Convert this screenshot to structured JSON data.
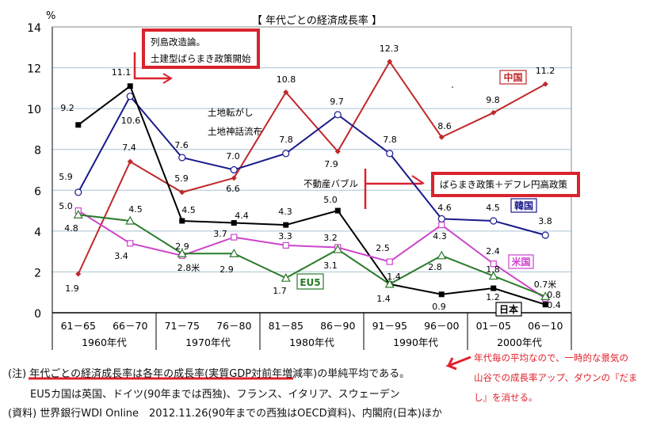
{
  "chart_data": {
    "type": "line",
    "title": "【 年代ごとの経済成長率 】",
    "ylabel": "%",
    "ylim": [
      0,
      14
    ],
    "yticks": [
      0,
      2,
      4,
      6,
      8,
      10,
      12,
      14
    ],
    "grid": true,
    "categories": [
      "61-65",
      "66-70",
      "71-75",
      "76-80",
      "81-85",
      "86-90",
      "91-95",
      "96-00",
      "01-05",
      "06-10"
    ],
    "decades": [
      "1960年代",
      "1970年代",
      "1980年代",
      "1990年代",
      "2000年代"
    ],
    "series": [
      {
        "name": "日本",
        "color": "#000000",
        "marker": "filled-square",
        "values": [
          9.2,
          11.1,
          4.5,
          4.4,
          4.3,
          5.0,
          1.4,
          0.9,
          1.2,
          0.4
        ],
        "labels": [
          "9.2",
          "11.1",
          "4.5",
          "4.4",
          "4.3",
          "5.0",
          "1.4",
          "0.9",
          "1.2",
          "0.4"
        ]
      },
      {
        "name": "韓国",
        "color": "#1a1a8c",
        "marker": "open-circle",
        "values": [
          5.9,
          10.6,
          7.6,
          7.0,
          7.8,
          9.7,
          7.8,
          4.6,
          4.5,
          3.8
        ],
        "labels": [
          "5.9",
          "10.6",
          "7.6",
          "7.0",
          "7.8",
          "9.7",
          "7.8",
          "4.6",
          "4.5",
          "3.8"
        ]
      },
      {
        "name": "中国",
        "color": "#c0282a",
        "marker": "filled-diamond",
        "values": [
          1.9,
          7.4,
          5.9,
          6.6,
          10.8,
          7.9,
          12.3,
          8.6,
          9.8,
          11.2
        ],
        "labels": [
          "1.9",
          "7.4",
          "5.9",
          "6.6",
          "10.8",
          "7.9",
          "12.3",
          "8.6",
          "9.8",
          "11.2"
        ]
      },
      {
        "name": "米国",
        "color": "#cc44cc",
        "marker": "open-square",
        "values": [
          5.0,
          3.4,
          2.8,
          3.7,
          3.3,
          3.2,
          2.5,
          4.3,
          2.4,
          0.7
        ],
        "labels": [
          "5.0",
          "3.4",
          "2.8米",
          "3.7",
          "3.3",
          "3.2",
          "2.5",
          "4.3",
          "2.4",
          "0.7米"
        ]
      },
      {
        "name": "EU5",
        "color": "#2a7a2a",
        "marker": "open-triangle",
        "values": [
          4.8,
          4.5,
          2.9,
          2.9,
          1.7,
          3.1,
          1.4,
          2.8,
          1.8,
          0.8
        ],
        "labels": [
          "4.8",
          "4.5",
          "2.9",
          "2.9",
          "1.7",
          "3.1",
          "1.4",
          "2.8",
          "1.8",
          "0.8"
        ]
      }
    ],
    "annotations": {
      "box1_line1": "列島改造論。",
      "box1_line2": "土建型ばらまき政策開始",
      "land1": "土地転がし",
      "land2": "土地神話流布",
      "bubble": "不動産バブル",
      "box2": "ばらまき政策＋デフレ円高政策"
    }
  },
  "notes": {
    "line1": "(注) 年代ごとの経済成長率は各年の成長率(実質GDP対前年増減率)の単純平均である。",
    "line2": "EU5カ国は英国、ドイツ(90年までは西独)、フランス、イタリア、スウェーデン",
    "line3": "(資料) 世界銀行WDI Online　2012.11.26(90年までの西独はOECD資料)、内閣府(日本)ほか"
  },
  "comment": {
    "line1": "年代毎の平均なので、一時的な景気の",
    "line2": "山谷での成長率アップ、ダウンの『だま",
    "line3": "し』を消せる。",
    "color": "#e0202a"
  },
  "accent_red": "#d9232d"
}
